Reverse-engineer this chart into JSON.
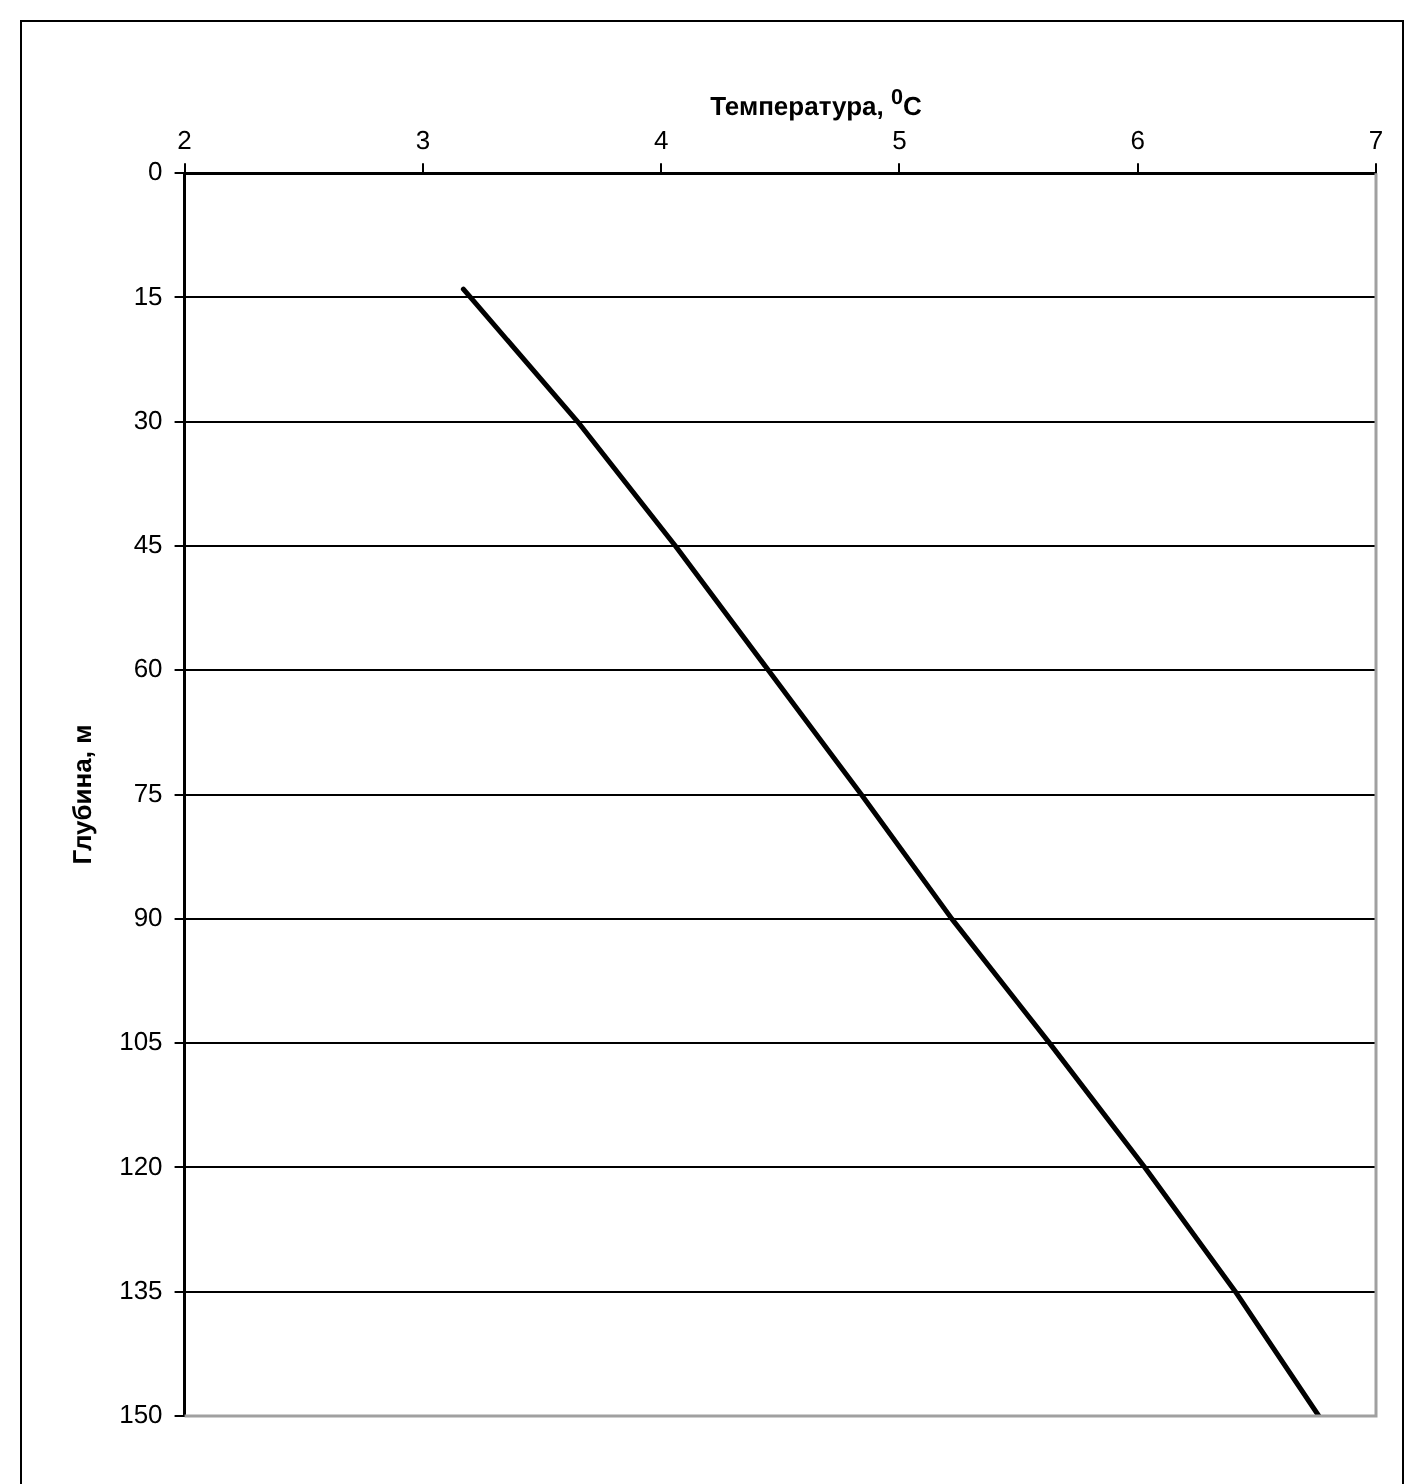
{
  "chart_data": {
    "type": "line",
    "xlabel": "Температура, $^{0}$C",
    "ylabel": "Глубина, м",
    "x": [
      3.17,
      3.2,
      3.65,
      4.06,
      4.45,
      4.84,
      5.22,
      5.63,
      6.03,
      6.41,
      6.76
    ],
    "values": [
      14,
      15,
      30,
      45,
      60,
      75,
      90,
      105,
      120,
      135,
      150
    ],
    "color": "#000000",
    "xlim": [
      2,
      7
    ],
    "xticks": [
      2,
      3,
      4,
      5,
      6,
      7
    ],
    "ylim": [
      150,
      0
    ],
    "yticks": [
      0,
      15,
      30,
      45,
      60,
      75,
      90,
      105,
      120,
      135,
      150
    ],
    "grid": "y",
    "marker": "none",
    "line_style": "solid"
  }
}
